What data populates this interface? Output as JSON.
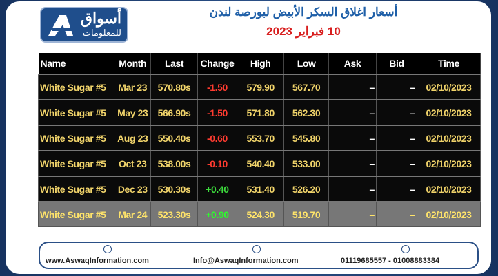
{
  "header": {
    "logo": {
      "name": "أسواق",
      "subtitle": "للمعلومات"
    },
    "title": "أسعار اغلاق السكر الأبيض لبورصة لندن",
    "date": "10 فبراير 2023"
  },
  "table": {
    "columns": [
      "Name",
      "Month",
      "Last",
      "Change",
      "High",
      "Low",
      "Ask",
      "Bid",
      "Time"
    ],
    "rows": [
      [
        "White Sugar #5",
        "Mar 23",
        "570.80s",
        "-1.50",
        "579.90",
        "567.70",
        "–",
        "–",
        "02/10/2023"
      ],
      [
        "White Sugar #5",
        "May 23",
        "566.90s",
        "-1.50",
        "571.80",
        "562.30",
        "–",
        "–",
        "02/10/2023"
      ],
      [
        "White Sugar #5",
        "Aug 23",
        "550.40s",
        "-0.60",
        "553.70",
        "545.80",
        "–",
        "–",
        "02/10/2023"
      ],
      [
        "White Sugar #5",
        "Oct 23",
        "538.00s",
        "-0.10",
        "540.40",
        "533.00",
        "–",
        "–",
        "02/10/2023"
      ],
      [
        "White Sugar #5",
        "Dec 23",
        "530.30s",
        "+0.40",
        "531.40",
        "526.20",
        "–",
        "–",
        "02/10/2023"
      ],
      [
        "White Sugar #5",
        "Mar 24",
        "523.30s",
        "+0.90",
        "524.30",
        "519.70",
        "–",
        "–",
        "02/10/2023"
      ]
    ]
  },
  "footer": {
    "website": "www.AswaqInformation.com",
    "email": "Info@AswaqInformation.com",
    "phone": "01119685557 - 01008883384"
  }
}
